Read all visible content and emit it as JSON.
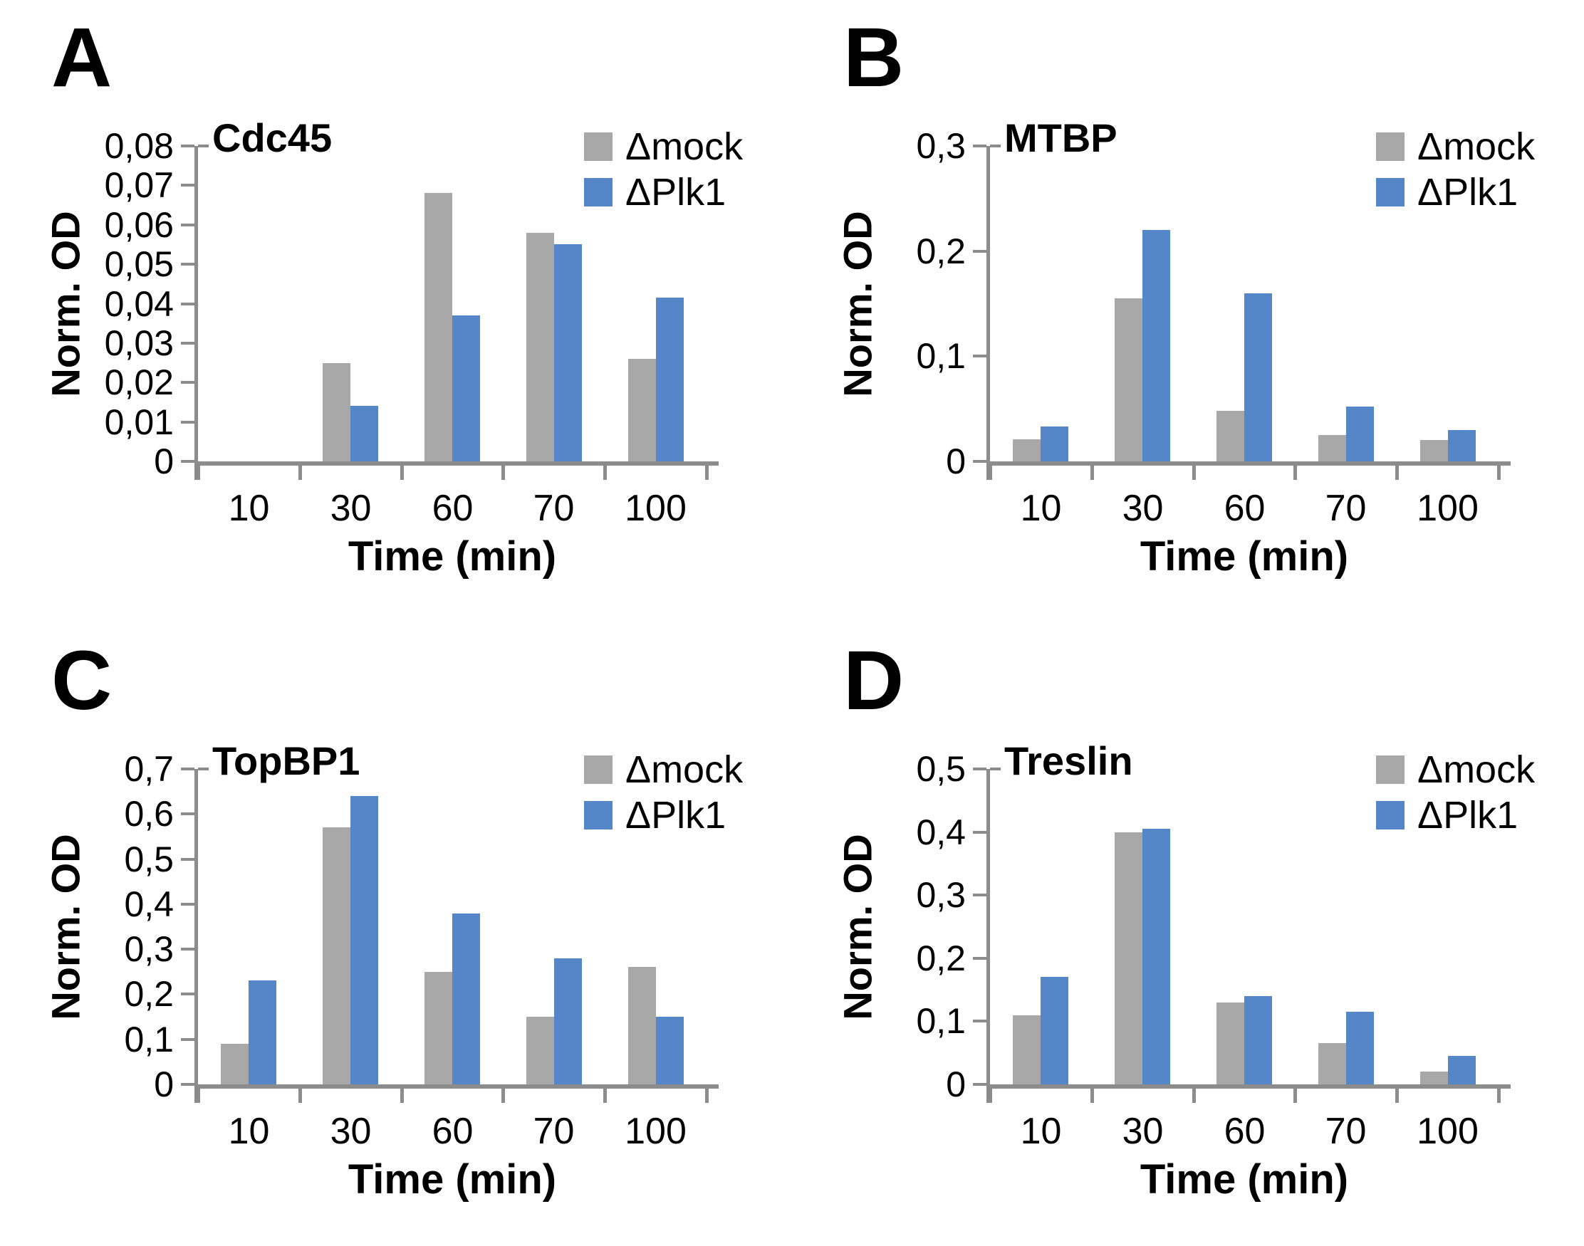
{
  "colors": {
    "mock": "#A8A8A8",
    "plk1": "#5586C7",
    "axis": "#8C8C8C",
    "text": "#000000",
    "background": "#FFFFFF"
  },
  "chart_data": [
    {
      "panel": "A",
      "type": "bar",
      "title": "Cdc45",
      "xlabel": "Time (min)",
      "ylabel": "Norm. OD",
      "categories": [
        "10",
        "30",
        "60",
        "70",
        "100"
      ],
      "series": [
        {
          "name": "Δmock",
          "values": [
            0,
            0.025,
            0.068,
            0.058,
            0.026
          ]
        },
        {
          "name": "ΔPlk1",
          "values": [
            0,
            0.014,
            0.037,
            0.055,
            0.0415
          ]
        }
      ],
      "ylim": [
        0,
        0.08
      ],
      "ytick_step": 0.01,
      "ytick_labels": [
        "0",
        "0,01",
        "0,02",
        "0,03",
        "0,04",
        "0,05",
        "0,06",
        "0,07",
        "0,08"
      ],
      "grid": false,
      "legend_position": "top-right"
    },
    {
      "panel": "B",
      "type": "bar",
      "title": "MTBP",
      "xlabel": "Time (min)",
      "ylabel": "Norm. OD",
      "categories": [
        "10",
        "30",
        "60",
        "70",
        "100"
      ],
      "series": [
        {
          "name": "Δmock",
          "values": [
            0.021,
            0.155,
            0.048,
            0.025,
            0.02
          ]
        },
        {
          "name": "ΔPlk1",
          "values": [
            0.033,
            0.22,
            0.16,
            0.052,
            0.03
          ]
        }
      ],
      "ylim": [
        0,
        0.3
      ],
      "ytick_step": 0.1,
      "ytick_labels": [
        "0",
        "0,1",
        "0,2",
        "0,3"
      ],
      "grid": false,
      "legend_position": "top-right"
    },
    {
      "panel": "C",
      "type": "bar",
      "title": "TopBP1",
      "xlabel": "Time (min)",
      "ylabel": "Norm. OD",
      "categories": [
        "10",
        "30",
        "60",
        "70",
        "100"
      ],
      "series": [
        {
          "name": "Δmock",
          "values": [
            0.09,
            0.57,
            0.25,
            0.15,
            0.26
          ]
        },
        {
          "name": "ΔPlk1",
          "values": [
            0.23,
            0.64,
            0.38,
            0.28,
            0.15
          ]
        }
      ],
      "ylim": [
        0,
        0.7
      ],
      "ytick_step": 0.1,
      "ytick_labels": [
        "0",
        "0,1",
        "0,2",
        "0,3",
        "0,4",
        "0,5",
        "0,6",
        "0,7"
      ],
      "grid": false,
      "legend_position": "top-right"
    },
    {
      "panel": "D",
      "type": "bar",
      "title": "Treslin",
      "xlabel": "Time (min)",
      "ylabel": "Norm. OD",
      "categories": [
        "10",
        "30",
        "60",
        "70",
        "100"
      ],
      "series": [
        {
          "name": "Δmock",
          "values": [
            0.11,
            0.4,
            0.13,
            0.065,
            0.02
          ]
        },
        {
          "name": "ΔPlk1",
          "values": [
            0.17,
            0.405,
            0.14,
            0.115,
            0.045
          ]
        }
      ],
      "ylim": [
        0,
        0.5
      ],
      "ytick_step": 0.1,
      "ytick_labels": [
        "0",
        "0,1",
        "0,2",
        "0,3",
        "0,4",
        "0,5"
      ],
      "grid": false,
      "legend_position": "top-right"
    }
  ]
}
